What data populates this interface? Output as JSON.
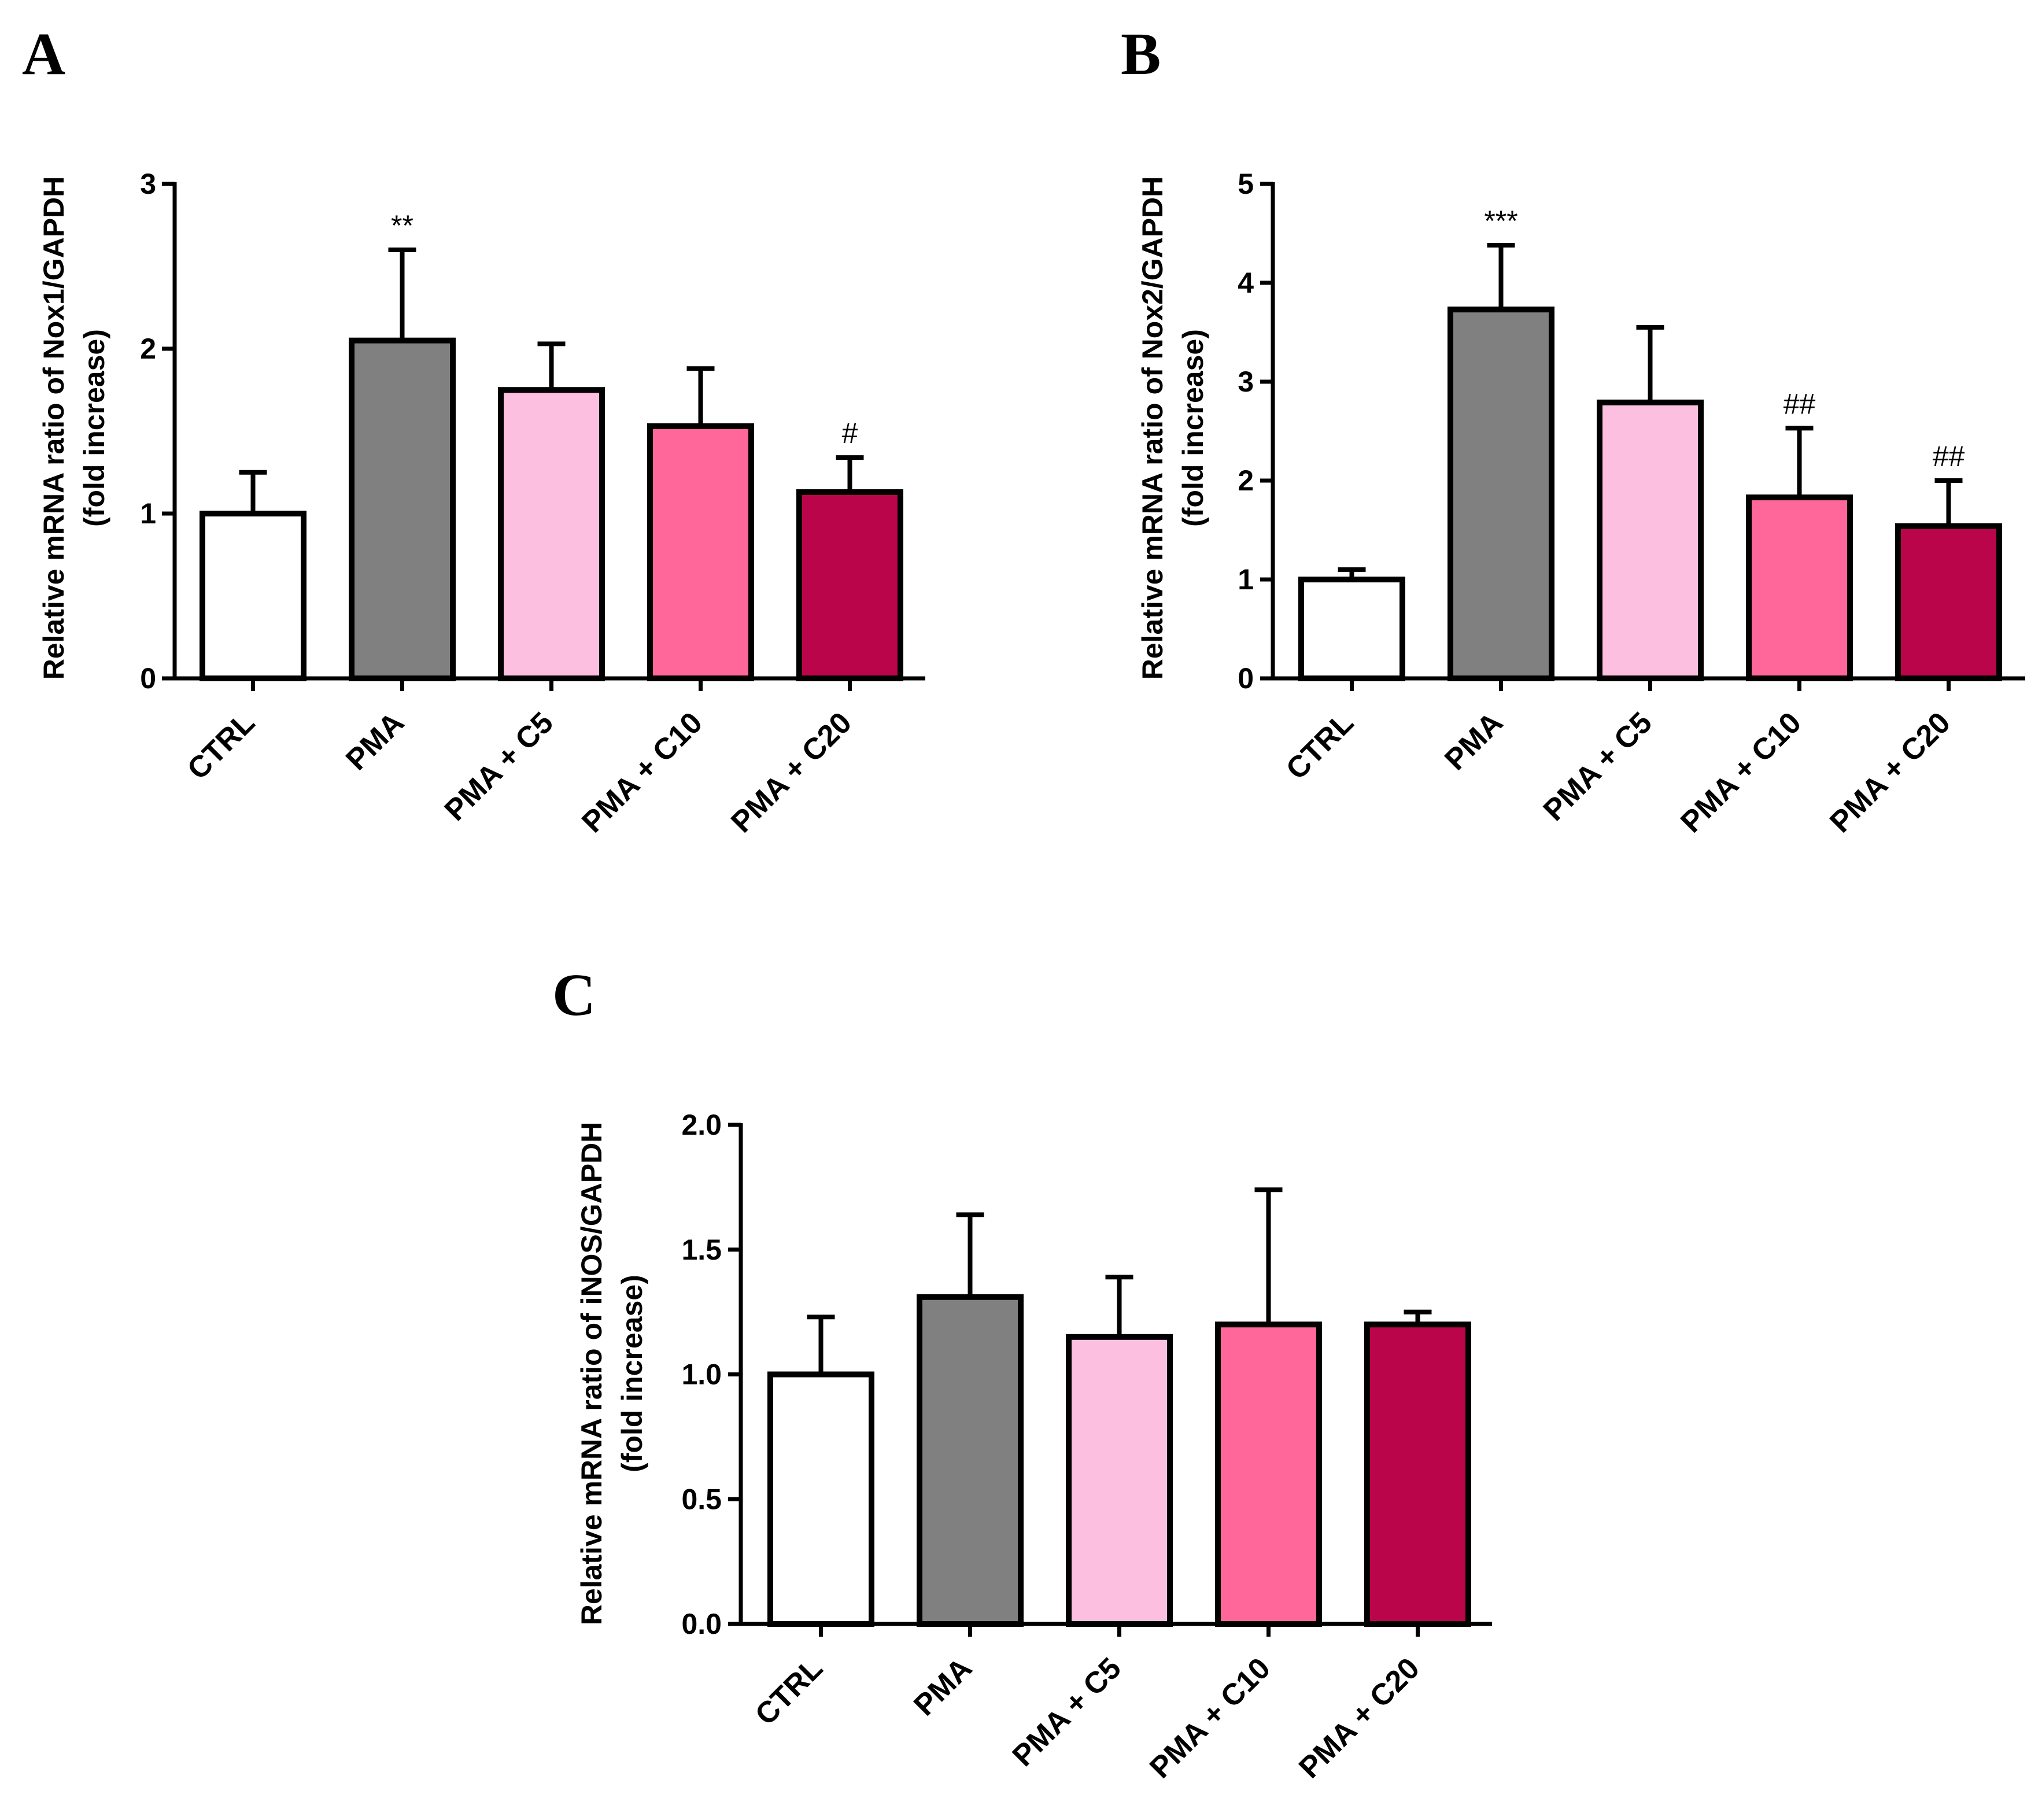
{
  "chart_data": [
    {
      "type": "bar",
      "panel": "A",
      "categories": [
        "CTRL",
        "PMA",
        "PMA + C5",
        "PMA + C10",
        "PMA + C20"
      ],
      "values": [
        1.0,
        2.05,
        1.75,
        1.53,
        1.13
      ],
      "errors": [
        0.25,
        0.55,
        0.28,
        0.35,
        0.21
      ],
      "annotations": [
        "",
        "**",
        "",
        "",
        "#"
      ],
      "colors": [
        "#ffffff",
        "#808080",
        "#fdbfe0",
        "#ff6699",
        "#bb054a"
      ],
      "ylabel_line1": "Relative mRNA ratio of Nox1/GAPDH",
      "ylabel_line2": "(fold increase)",
      "ylim": [
        0,
        3
      ],
      "yticks": [
        0,
        1,
        2,
        3
      ],
      "ytick_labels": [
        "0",
        "1",
        "2",
        "3"
      ]
    },
    {
      "type": "bar",
      "panel": "B",
      "categories": [
        "CTRL",
        "PMA",
        "PMA + C5",
        "PMA + C10",
        "PMA + C20"
      ],
      "values": [
        1.0,
        3.73,
        2.79,
        1.83,
        1.54
      ],
      "errors": [
        0.1,
        0.65,
        0.76,
        0.7,
        0.46
      ],
      "annotations": [
        "",
        "***",
        "",
        "##",
        "##"
      ],
      "colors": [
        "#ffffff",
        "#808080",
        "#fdbfe0",
        "#ff6699",
        "#bb054a"
      ],
      "ylabel_line1": "Relative mRNA ratio of Nox2/GAPDH",
      "ylabel_line2": "(fold increase)",
      "ylim": [
        0,
        5
      ],
      "yticks": [
        0,
        1,
        2,
        3,
        4,
        5
      ],
      "ytick_labels": [
        "0",
        "1",
        "2",
        "3",
        "4",
        "5"
      ]
    },
    {
      "type": "bar",
      "panel": "C",
      "categories": [
        "CTRL",
        "PMA",
        "PMA + C5",
        "PMA + C10",
        "PMA + C20"
      ],
      "values": [
        1.0,
        1.31,
        1.15,
        1.2,
        1.2
      ],
      "errors": [
        0.23,
        0.33,
        0.24,
        0.54,
        0.05
      ],
      "annotations": [
        "",
        "",
        "",
        "",
        ""
      ],
      "colors": [
        "#ffffff",
        "#808080",
        "#fdbfe0",
        "#ff6699",
        "#bb054a"
      ],
      "ylabel_line1": "Relative mRNA ratio of iNOS/GAPDH",
      "ylabel_line2": "(fold increase)",
      "ylim": [
        0,
        2.0
      ],
      "yticks": [
        0,
        0.5,
        1.0,
        1.5,
        2.0
      ],
      "ytick_labels": [
        "0.0",
        "0.5",
        "1.0",
        "1.5",
        "2.0"
      ]
    }
  ]
}
